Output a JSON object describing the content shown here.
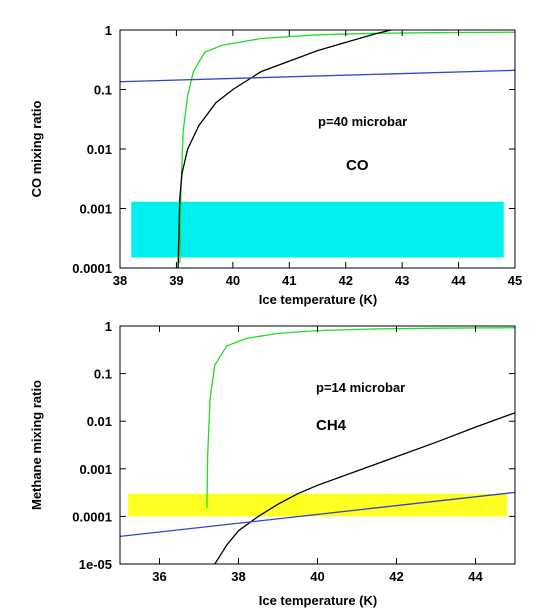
{
  "chart_data": [
    {
      "type": "line",
      "title": "",
      "xlabel": "Ice temperature (K)",
      "ylabel": "CO mixing ratio",
      "xlim": [
        38,
        45
      ],
      "ylim": [
        0.0001,
        1
      ],
      "yscale": "log",
      "x_ticks": [
        "38",
        "39",
        "40",
        "41",
        "42",
        "43",
        "44",
        "45"
      ],
      "y_ticks": [
        "0.0001",
        "0.001",
        "0.01",
        "0.1",
        "1"
      ],
      "annotations": [
        "p=40 microbar",
        "CO"
      ],
      "band": {
        "x": [
          38.2,
          44.8
        ],
        "y": [
          0.00015,
          0.0013
        ],
        "color": "#00f0f0"
      },
      "series": [
        {
          "color": "#22dd22",
          "points": [
            [
              39.06,
              0.00012
            ],
            [
              39.08,
              0.002
            ],
            [
              39.12,
              0.02
            ],
            [
              39.2,
              0.08
            ],
            [
              39.3,
              0.2
            ],
            [
              39.5,
              0.42
            ],
            [
              39.8,
              0.55
            ],
            [
              40.5,
              0.72
            ],
            [
              41.5,
              0.83
            ],
            [
              42.5,
              0.88
            ],
            [
              43.5,
              0.9
            ],
            [
              45,
              0.92
            ]
          ]
        },
        {
          "color": "#000000",
          "points": [
            [
              39.03,
              0.0001
            ],
            [
              39.06,
              0.0015
            ],
            [
              39.1,
              0.004
            ],
            [
              39.2,
              0.01
            ],
            [
              39.4,
              0.025
            ],
            [
              39.7,
              0.06
            ],
            [
              40,
              0.1
            ],
            [
              40.5,
              0.2
            ],
            [
              41,
              0.3
            ],
            [
              41.5,
              0.45
            ],
            [
              42,
              0.62
            ],
            [
              42.5,
              0.85
            ],
            [
              42.8,
              1
            ]
          ]
        },
        {
          "color": "#3344cc",
          "points": [
            [
              38,
              0.135
            ],
            [
              45,
              0.21
            ]
          ]
        }
      ]
    },
    {
      "type": "line",
      "title": "",
      "xlabel": "Ice temperature (K)",
      "ylabel": "Methane mixing ratio",
      "xlim": [
        35,
        45
      ],
      "ylim": [
        1e-05,
        1
      ],
      "yscale": "log",
      "x_ticks": [
        "36",
        "38",
        "40",
        "42",
        "44"
      ],
      "y_ticks": [
        "1e-05",
        "0.0001",
        "0.001",
        "0.01",
        "0.1",
        "1"
      ],
      "annotations": [
        "p=14 microbar",
        "CH4"
      ],
      "band": {
        "x": [
          35.2,
          44.8
        ],
        "y": [
          0.0001,
          0.0003
        ],
        "color": "#ffff22"
      },
      "series": [
        {
          "color": "#22dd22",
          "points": [
            [
              37.2,
              0.00015
            ],
            [
              37.22,
              0.002
            ],
            [
              37.28,
              0.03
            ],
            [
              37.4,
              0.15
            ],
            [
              37.7,
              0.38
            ],
            [
              38.2,
              0.55
            ],
            [
              39,
              0.7
            ],
            [
              40,
              0.8
            ],
            [
              41.5,
              0.87
            ],
            [
              43,
              0.9
            ],
            [
              45,
              0.92
            ]
          ]
        },
        {
          "color": "#000000",
          "points": [
            [
              37.4,
              1e-05
            ],
            [
              37.7,
              2.5e-05
            ],
            [
              38,
              5e-05
            ],
            [
              38.5,
              0.0001
            ],
            [
              39,
              0.00018
            ],
            [
              39.5,
              0.0003
            ],
            [
              40,
              0.00045
            ],
            [
              41,
              0.0009
            ],
            [
              42,
              0.0018
            ],
            [
              43,
              0.0036
            ],
            [
              44,
              0.0075
            ],
            [
              45,
              0.015
            ]
          ]
        },
        {
          "color": "#3344cc",
          "points": [
            [
              35,
              3.8e-05
            ],
            [
              45,
              0.00032
            ]
          ]
        }
      ]
    }
  ]
}
